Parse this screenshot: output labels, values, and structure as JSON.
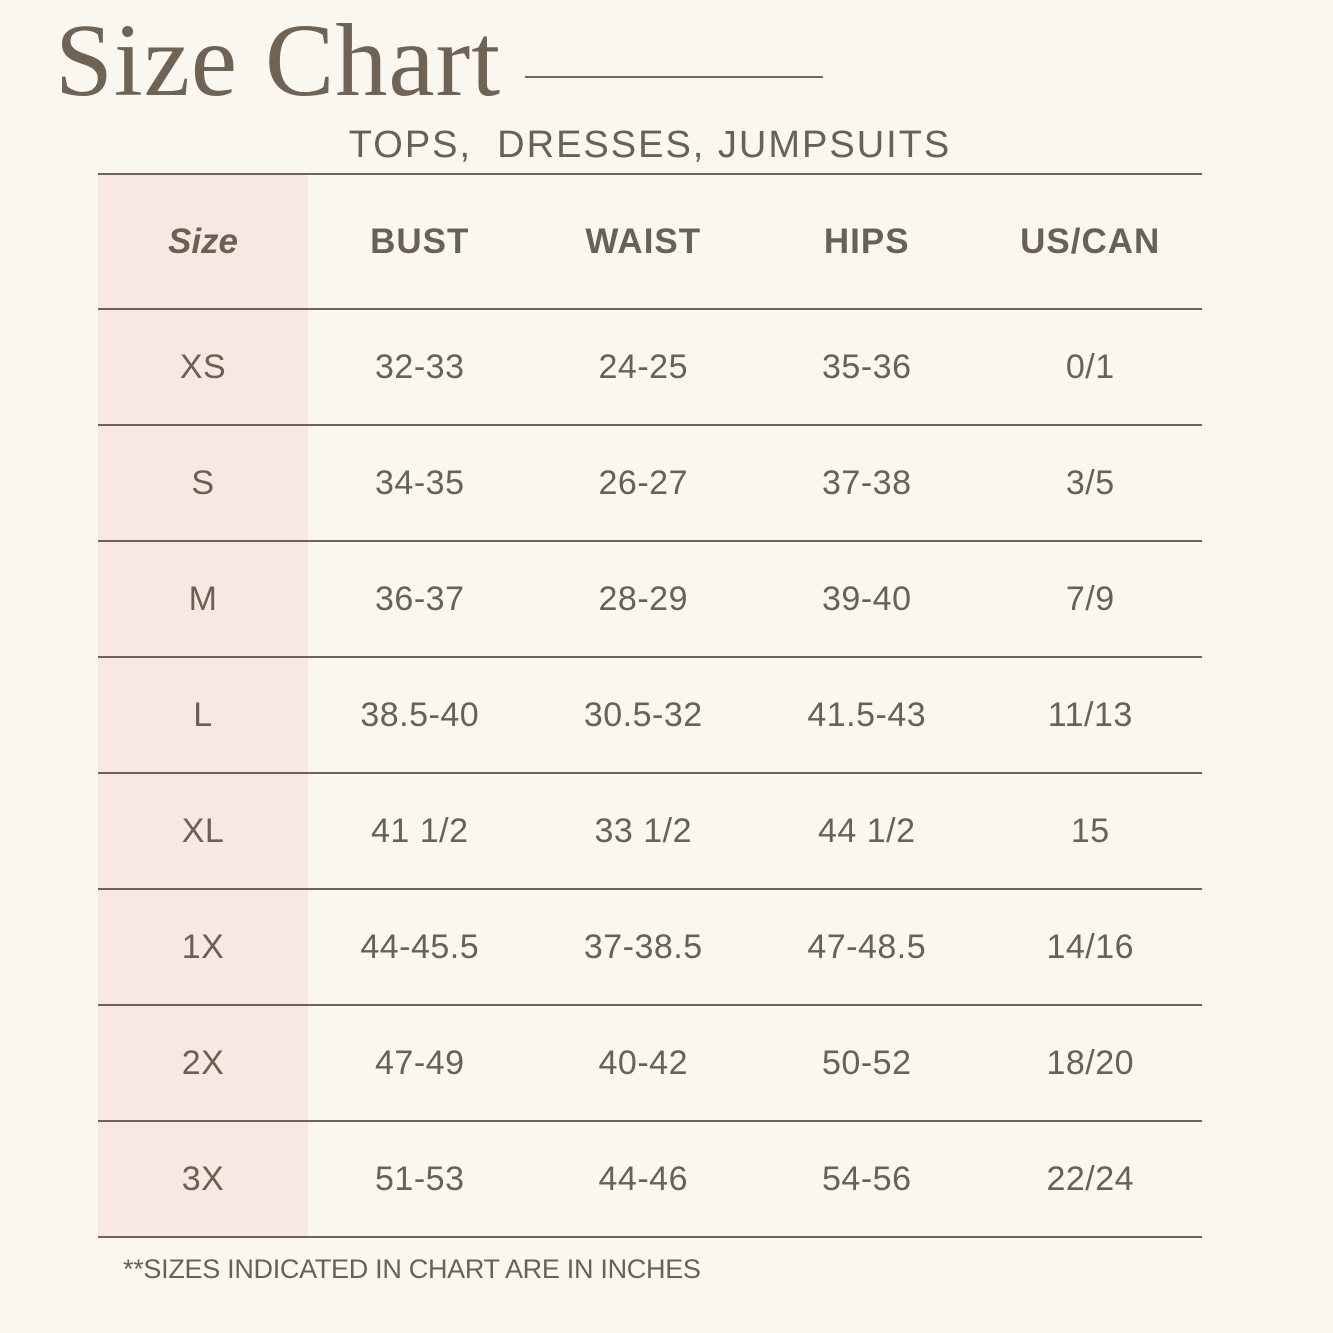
{
  "page": {
    "title": "Size Chart",
    "subtitle": "TOPS,  DRESSES, JUMPSUITS",
    "footnote": "**SIZES INDICATED IN CHART ARE IN INCHES"
  },
  "colors": {
    "background": "#FAF7F0",
    "size_column_fill": "#F9E7E2",
    "text": "#6B6054",
    "rule": "#6F6457"
  },
  "chart_data": {
    "type": "table",
    "title": "Size Chart",
    "subtitle": "TOPS,  DRESSES, JUMPSUITS",
    "columns": [
      "Size",
      "BUST",
      "WAIST",
      "HIPS",
      "US/CAN"
    ],
    "rows": [
      [
        "XS",
        "32-33",
        "24-25",
        "35-36",
        "0/1"
      ],
      [
        "S",
        "34-35",
        "26-27",
        "37-38",
        "3/5"
      ],
      [
        "M",
        "36-37",
        "28-29",
        "39-40",
        "7/9"
      ],
      [
        "L",
        "38.5-40",
        "30.5-32",
        "41.5-43",
        "11/13"
      ],
      [
        "XL",
        "41 1/2",
        "33 1/2",
        "44 1/2",
        "15"
      ],
      [
        "1X",
        "44-45.5",
        "37-38.5",
        "47-48.5",
        "14/16"
      ],
      [
        "2X",
        "47-49",
        "40-42",
        "50-52",
        "18/20"
      ],
      [
        "3X",
        "51-53",
        "44-46",
        "54-56",
        "22/24"
      ]
    ],
    "note": "**SIZES INDICATED IN CHART ARE IN INCHES",
    "layout_hints": {
      "first_column_highlighted": true,
      "grid": "horizontal-lines-only"
    }
  }
}
